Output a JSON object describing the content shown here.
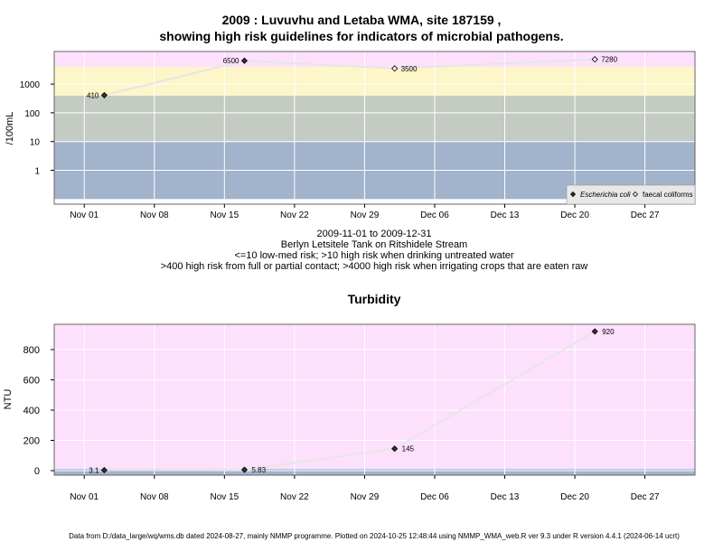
{
  "chart_data": [
    {
      "type": "line",
      "title": "2009 : Luvuvhu and Letaba WMA, site 187159 ,",
      "subtitle": "showing high risk guidelines for indicators of microbial pathogens.",
      "ylabel": "/100mL",
      "yscale": "log",
      "yticks": [
        "1",
        "10",
        "100",
        "1000"
      ],
      "x_start": "2009-10-29",
      "x_end": "2010-01-01",
      "xticks": [
        {
          "date": "2009-11-01",
          "label": "Nov 01"
        },
        {
          "date": "2009-11-08",
          "label": "Nov 08"
        },
        {
          "date": "2009-11-15",
          "label": "Nov 15"
        },
        {
          "date": "2009-11-22",
          "label": "Nov 22"
        },
        {
          "date": "2009-11-29",
          "label": "Nov 29"
        },
        {
          "date": "2009-12-06",
          "label": "Dec 06"
        },
        {
          "date": "2009-12-13",
          "label": "Dec 13"
        },
        {
          "date": "2009-12-20",
          "label": "Dec 20"
        },
        {
          "date": "2009-12-27",
          "label": "Dec 27"
        }
      ],
      "risk_bands": [
        {
          "from": 0.1,
          "to": 10,
          "color": "#a2b3cc"
        },
        {
          "from": 10,
          "to": 400,
          "color": "#c4cbc2"
        },
        {
          "from": 400,
          "to": 4000,
          "color": "#fcf6c8"
        },
        {
          "from": 4000,
          "to": 20000,
          "color": "#fce0fc"
        }
      ],
      "series": [
        {
          "name": "Escherichia coli",
          "marker": "filled-diamond",
          "points": [
            {
              "date": "2009-11-03",
              "value": 410,
              "label": "410"
            },
            {
              "date": "2009-11-17",
              "value": 6500,
              "label": "6500"
            }
          ]
        },
        {
          "name": "faecal coliforms",
          "marker": "open-diamond",
          "points": [
            {
              "date": "2009-12-02",
              "value": 3500,
              "label": "3500"
            },
            {
              "date": "2009-12-22",
              "value": 7280,
              "label": "7280"
            }
          ]
        }
      ],
      "legend": "bottom-right",
      "captions": [
        "2009-11-01 to 2009-12-31",
        "Berlyn Letsitele Tank on Ritshidele Stream",
        "<=10 low-med risk; >10 high risk when drinking untreated water",
        ">400 high risk from full or partial contact; >4000 high risk when irrigating crops that are eaten raw"
      ]
    },
    {
      "type": "line",
      "title": "Turbidity",
      "ylabel": "NTU",
      "ylim": [
        -40,
        950
      ],
      "yticks": [
        "0",
        "200",
        "400",
        "600",
        "800"
      ],
      "band_low": {
        "from": -40,
        "to": 10,
        "color": "#a2b3cc"
      },
      "band_high": {
        "from": 10,
        "to": 950,
        "color": "#fce0fc"
      },
      "points": [
        {
          "date": "2009-11-03",
          "value": 3.1,
          "label": "3.1"
        },
        {
          "date": "2009-11-17",
          "value": 5.83,
          "label": "5.83"
        },
        {
          "date": "2009-12-02",
          "value": 145,
          "label": "145"
        },
        {
          "date": "2009-12-22",
          "value": 920,
          "label": "920"
        }
      ]
    }
  ],
  "footer": "Data from D:/data_large/wq/wms.db dated 2024-08-27, mainly NMMP programme. Plotted on 2024-10-25 12:48:44 using NMMP_WMA_web.R ver 9.3 under R version 4.4.1 (2024-06-14 ucrt)"
}
